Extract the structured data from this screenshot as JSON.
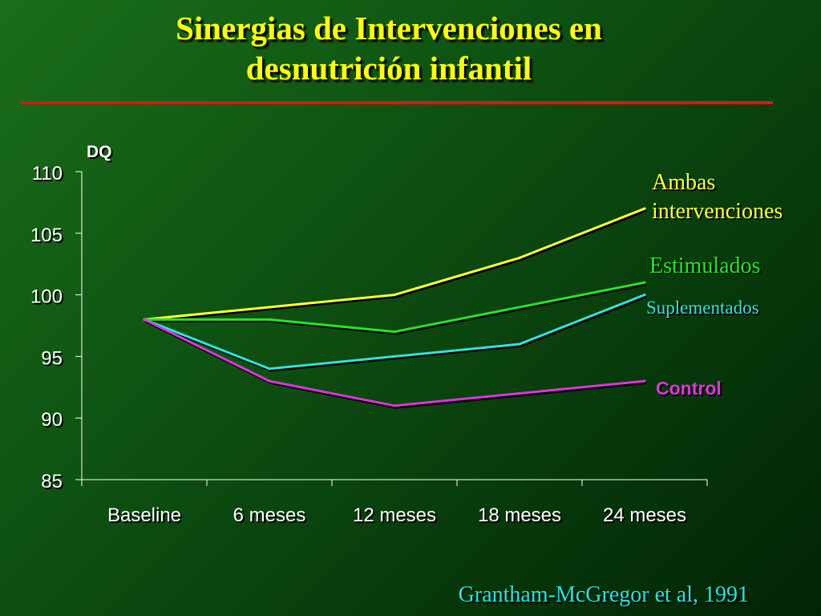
{
  "title": {
    "line1": "Sinergias de Intervenciones en",
    "line2": "desnutrición infantil"
  },
  "citation": "Grantham-McGregor et al, 1991",
  "colors": {
    "title": "#ffff00",
    "rule": "#e41212",
    "citation": "#22e4e4"
  },
  "chart_data": {
    "type": "line",
    "title": "",
    "xlabel": "",
    "ylabel": "DQ",
    "categories": [
      "Baseline",
      "6 meses",
      "12 meses",
      "18 meses",
      "24 meses"
    ],
    "ylim": [
      85,
      110
    ],
    "yticks": [
      85,
      90,
      95,
      100,
      105,
      110
    ],
    "grid": false,
    "legend": "right, labels at line ends",
    "series": [
      {
        "name": "Ambas intervenciones",
        "label_lines": [
          "Ambas",
          "intervenciones"
        ],
        "color": "#ffff33",
        "label_font": "serif",
        "values": [
          98,
          99,
          100,
          103,
          107
        ]
      },
      {
        "name": "Estimulados",
        "label_lines": [
          "Estimulados"
        ],
        "color": "#22e622",
        "label_font": "serif",
        "values": [
          98,
          98,
          97,
          99,
          101
        ]
      },
      {
        "name": "Suplementados",
        "label_lines": [
          "Suplementados"
        ],
        "color": "#33e0e0",
        "label_font": "serif",
        "values": [
          98,
          94,
          95,
          96,
          100
        ]
      },
      {
        "name": "Control",
        "label_lines": [
          "Control"
        ],
        "color": "#e033e0",
        "label_font": "sans",
        "values": [
          98,
          93,
          91,
          92,
          93
        ]
      }
    ]
  }
}
